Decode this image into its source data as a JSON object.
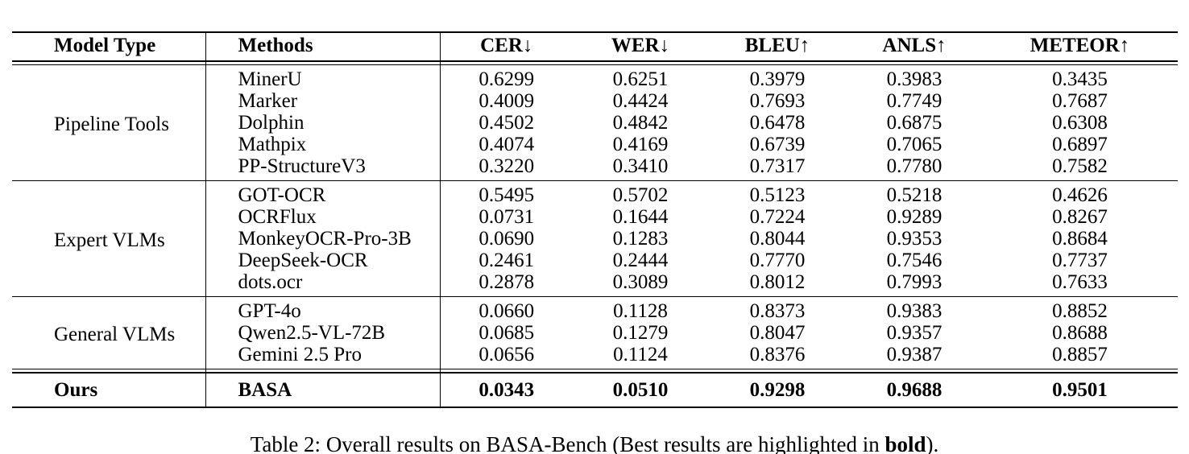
{
  "page": {
    "background_color": "#ffffff",
    "text_color": "#000000"
  },
  "table": {
    "headers": [
      "Model Type",
      "Methods",
      "CER↓",
      "WER↓",
      "BLEU↑",
      "ANLS↑",
      "METEOR↑"
    ],
    "groups": [
      {
        "model_type": "Pipeline Tools",
        "bold": false,
        "rows": [
          {
            "method": "MinerU",
            "cer": "0.6299",
            "wer": "0.6251",
            "bleu": "0.3979",
            "anls": "0.3983",
            "meteor": "0.3435"
          },
          {
            "method": "Marker",
            "cer": "0.4009",
            "wer": "0.4424",
            "bleu": "0.7693",
            "anls": "0.7749",
            "meteor": "0.7687"
          },
          {
            "method": "Dolphin",
            "cer": "0.4502",
            "wer": "0.4842",
            "bleu": "0.6478",
            "anls": "0.6875",
            "meteor": "0.6308"
          },
          {
            "method": "Mathpix",
            "cer": "0.4074",
            "wer": "0.4169",
            "bleu": "0.6739",
            "anls": "0.7065",
            "meteor": "0.6897"
          },
          {
            "method": "PP-StructureV3",
            "cer": "0.3220",
            "wer": "0.3410",
            "bleu": "0.7317",
            "anls": "0.7780",
            "meteor": "0.7582"
          }
        ]
      },
      {
        "model_type": "Expert VLMs",
        "bold": false,
        "rows": [
          {
            "method": "GOT-OCR",
            "cer": "0.5495",
            "wer": "0.5702",
            "bleu": "0.5123",
            "anls": "0.5218",
            "meteor": "0.4626"
          },
          {
            "method": "OCRFlux",
            "cer": "0.0731",
            "wer": "0.1644",
            "bleu": "0.7224",
            "anls": "0.9289",
            "meteor": "0.8267"
          },
          {
            "method": "MonkeyOCR-Pro-3B",
            "cer": "0.0690",
            "wer": "0.1283",
            "bleu": "0.8044",
            "anls": "0.9353",
            "meteor": "0.8684"
          },
          {
            "method": "DeepSeek-OCR",
            "cer": "0.2461",
            "wer": "0.2444",
            "bleu": "0.7770",
            "anls": "0.7546",
            "meteor": "0.7737"
          },
          {
            "method": "dots.ocr",
            "cer": "0.2878",
            "wer": "0.3089",
            "bleu": "0.8012",
            "anls": "0.7993",
            "meteor": "0.7633"
          }
        ]
      },
      {
        "model_type": "General VLMs",
        "bold": false,
        "rows": [
          {
            "method": "GPT-4o",
            "cer": "0.0660",
            "wer": "0.1128",
            "bleu": "0.8373",
            "anls": "0.9383",
            "meteor": "0.8852"
          },
          {
            "method": "Qwen2.5-VL-72B",
            "cer": "0.0685",
            "wer": "0.1279",
            "bleu": "0.8047",
            "anls": "0.9357",
            "meteor": "0.8688"
          },
          {
            "method": "Gemini 2.5 Pro",
            "cer": "0.0656",
            "wer": "0.1124",
            "bleu": "0.8376",
            "anls": "0.9387",
            "meteor": "0.8857"
          }
        ]
      },
      {
        "model_type": "Ours",
        "bold": true,
        "rows": [
          {
            "method": "BASA",
            "cer": "0.0343",
            "wer": "0.0510",
            "bleu": "0.9298",
            "anls": "0.9688",
            "meteor": "0.9501"
          }
        ]
      }
    ]
  },
  "caption": {
    "prefix": "Table 2: Overall results on BASA-Bench (Best results are highlighted in ",
    "bold_word": "bold",
    "suffix": ")."
  }
}
